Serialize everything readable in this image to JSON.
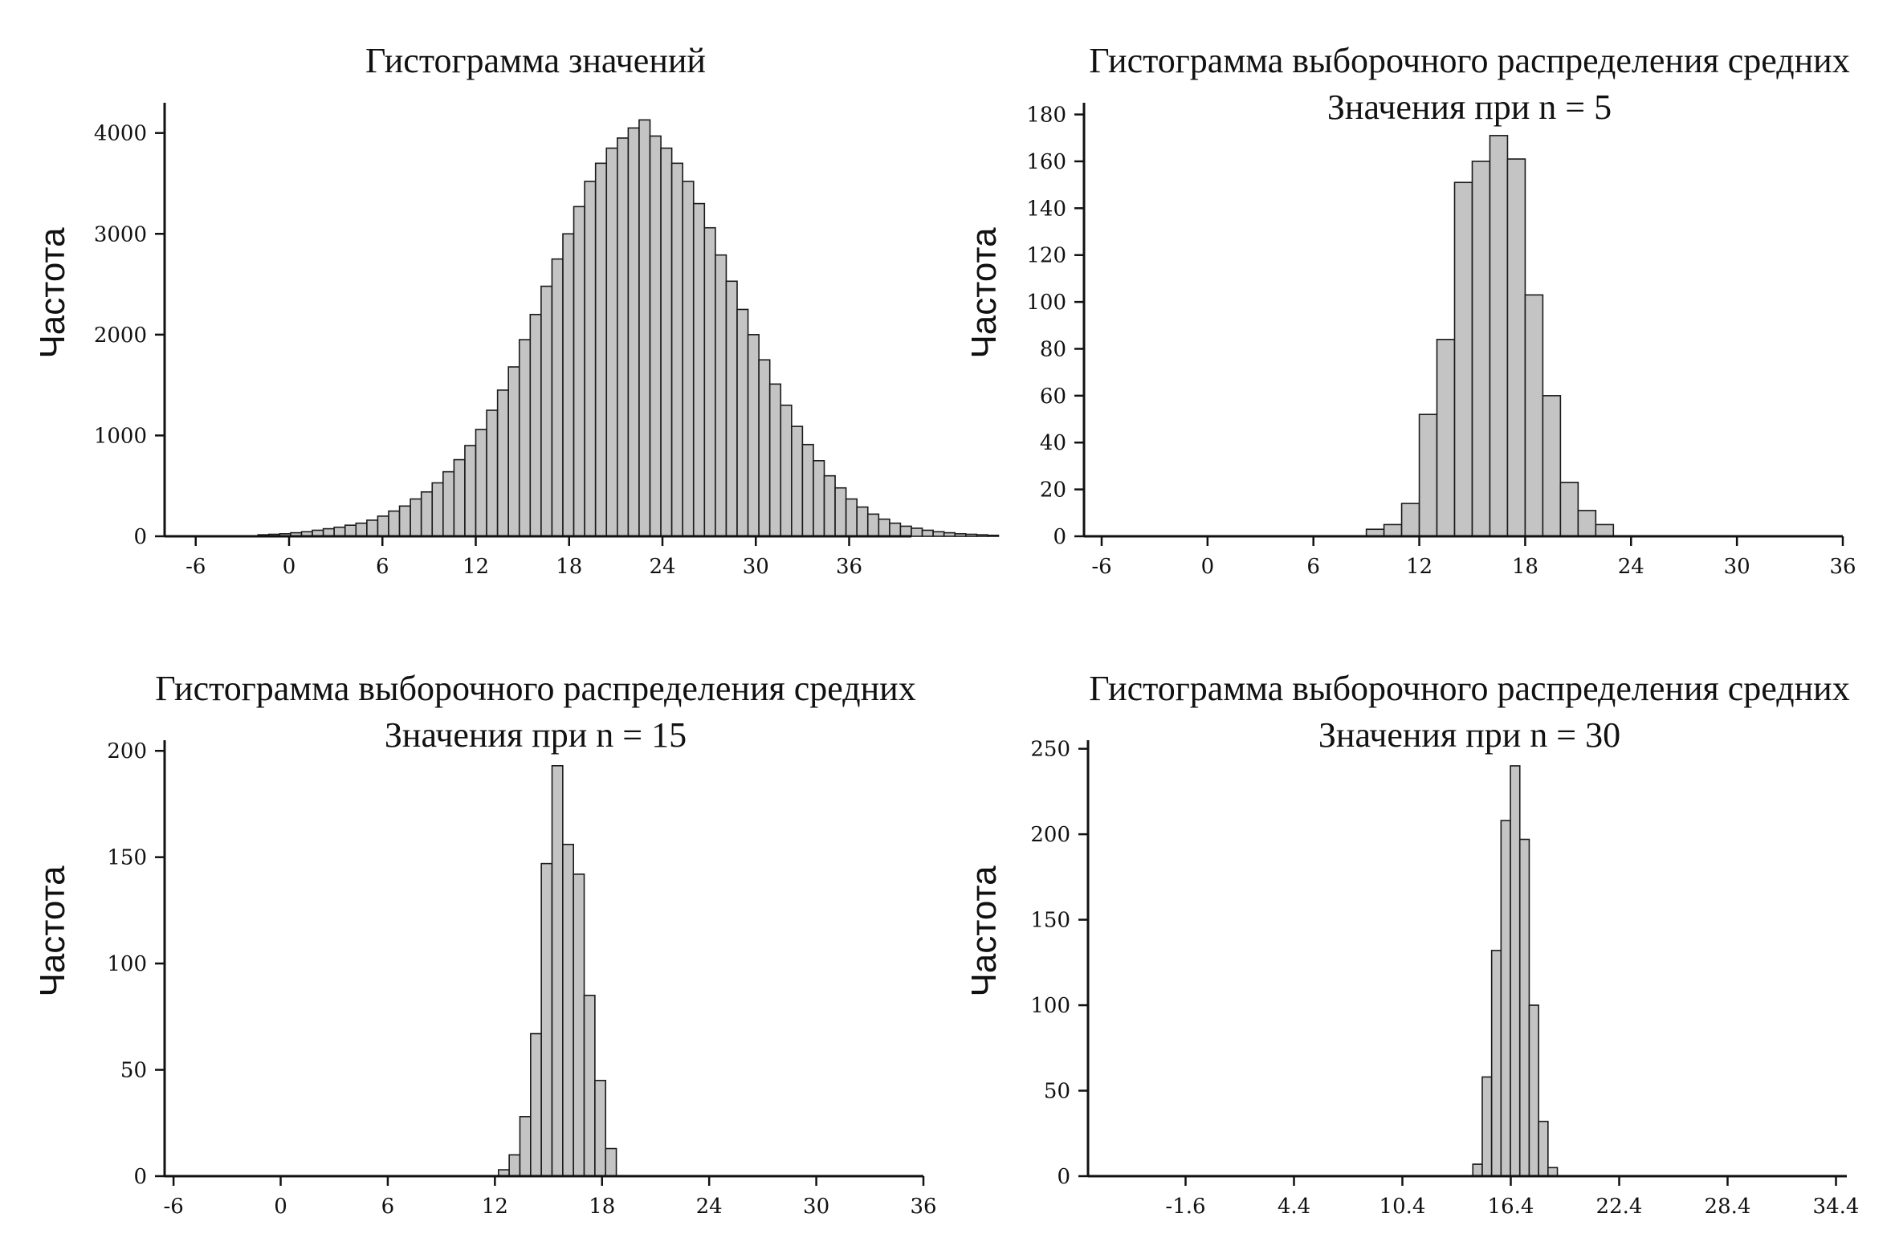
{
  "chart_data": [
    {
      "type": "bar",
      "title": "Гистограмма значений",
      "subtitle": "",
      "xlabel": "",
      "ylabel": "Частота",
      "xlim": [
        -8,
        40
      ],
      "ylim": [
        0,
        4300
      ],
      "xticks": [
        "-6",
        "0",
        "6",
        "12",
        "18",
        "24",
        "30",
        "36"
      ],
      "xtick_values": [
        -6,
        0,
        6,
        12,
        18,
        24,
        30,
        36
      ],
      "yticks": [
        "0",
        "1000",
        "2000",
        "3000",
        "4000"
      ],
      "ytick_values": [
        0,
        1000,
        2000,
        3000,
        4000
      ],
      "bin_start": -2,
      "bin_width": 0.7,
      "values": [
        15,
        20,
        25,
        35,
        45,
        60,
        75,
        90,
        110,
        130,
        160,
        200,
        250,
        300,
        370,
        440,
        530,
        640,
        760,
        900,
        1060,
        1250,
        1450,
        1680,
        1950,
        2200,
        2480,
        2750,
        3000,
        3270,
        3520,
        3700,
        3850,
        3950,
        4050,
        4130,
        3970,
        3850,
        3700,
        3520,
        3300,
        3060,
        2790,
        2530,
        2250,
        2000,
        1750,
        1510,
        1300,
        1090,
        910,
        750,
        600,
        480,
        370,
        290,
        220,
        170,
        130,
        100,
        80,
        60,
        45,
        35,
        25,
        20,
        15,
        10
      ]
    },
    {
      "type": "bar",
      "title": "Гистограмма выборочного распределения средних",
      "subtitle": "Значения при n = 5",
      "xlabel": "",
      "ylabel": "Частота",
      "xlim": [
        -7,
        36
      ],
      "ylim": [
        0,
        185
      ],
      "xticks": [
        "-6",
        "0",
        "6",
        "12",
        "18",
        "24",
        "30",
        "36"
      ],
      "xtick_values": [
        -6,
        0,
        6,
        12,
        18,
        24,
        30,
        36
      ],
      "yticks": [
        "0",
        "20",
        "40",
        "60",
        "80",
        "100",
        "120",
        "140",
        "160",
        "180"
      ],
      "ytick_values": [
        0,
        20,
        40,
        60,
        80,
        100,
        120,
        140,
        160,
        180
      ],
      "bin_start": 9,
      "bin_width": 1,
      "values": [
        3,
        5,
        14,
        52,
        84,
        151,
        160,
        171,
        161,
        103,
        60,
        23,
        11,
        5
      ]
    },
    {
      "type": "bar",
      "title": "Гистограмма выборочного распределения средних",
      "subtitle": "Значения при n = 15",
      "xlabel": "",
      "ylabel": "Частота",
      "xlim": [
        -6.5,
        36
      ],
      "ylim": [
        0,
        205
      ],
      "xticks": [
        "-6",
        "0",
        "6",
        "12",
        "18",
        "24",
        "30",
        "36"
      ],
      "xtick_values": [
        -6,
        0,
        6,
        12,
        18,
        24,
        30,
        36
      ],
      "yticks": [
        "0",
        "50",
        "100",
        "150",
        "200"
      ],
      "ytick_values": [
        0,
        50,
        100,
        150,
        200
      ],
      "bin_start": 12.2,
      "bin_width": 0.6,
      "values": [
        3,
        10,
        28,
        67,
        147,
        193,
        156,
        142,
        85,
        45,
        13
      ]
    },
    {
      "type": "bar",
      "title": "Гистограмма выборочного распределения средних",
      "subtitle": "Значения при n = 30",
      "xlabel": "",
      "ylabel": "Частота",
      "xlim": [
        -7,
        35
      ],
      "ylim": [
        0,
        255
      ],
      "xticks": [
        "-1.6",
        "4.4",
        "10.4",
        "16.4",
        "22.4",
        "28.4",
        "34.4"
      ],
      "xtick_values": [
        -1.6,
        4.4,
        10.4,
        16.4,
        22.4,
        28.4,
        34.4
      ],
      "yticks": [
        "0",
        "50",
        "100",
        "150",
        "200",
        "250"
      ],
      "ytick_values": [
        0,
        50,
        100,
        150,
        200,
        250
      ],
      "bin_start": 14.3,
      "bin_width": 0.52,
      "values": [
        7,
        58,
        132,
        208,
        240,
        197,
        100,
        32,
        5
      ]
    }
  ]
}
